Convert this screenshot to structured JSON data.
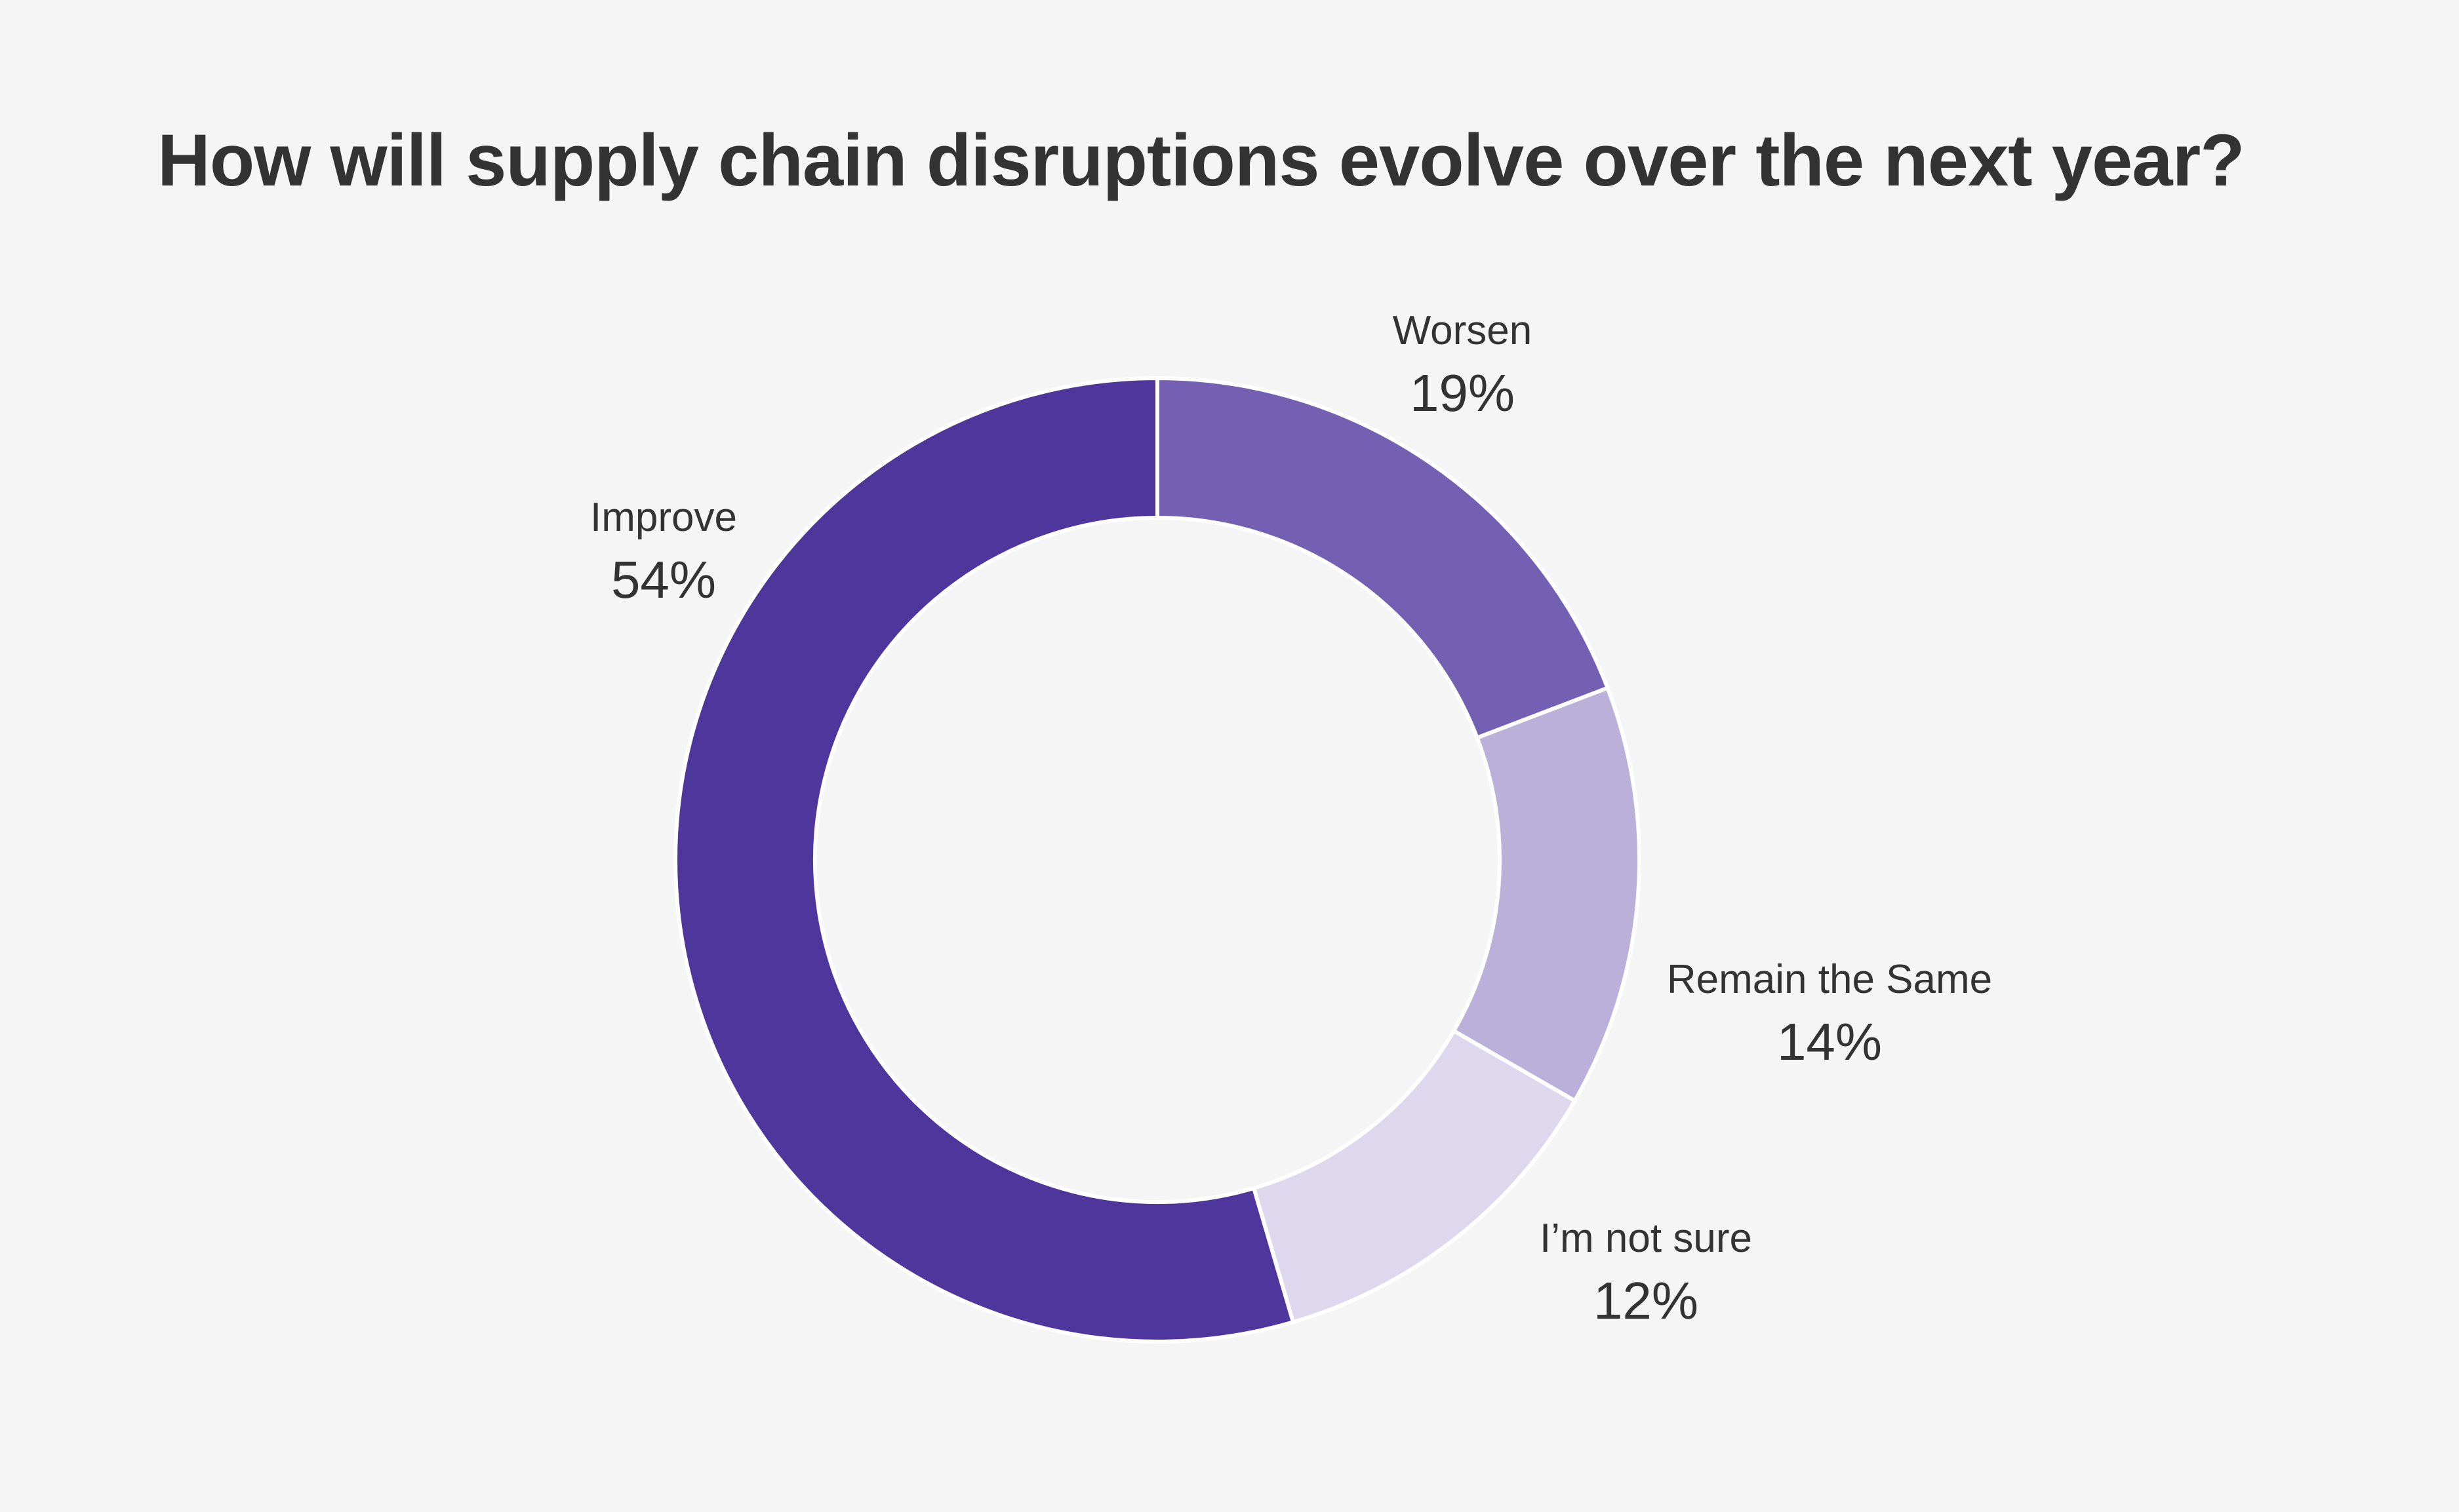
{
  "title": "How will supply chain disruptions evolve over the next year?",
  "chart_data": {
    "type": "pie",
    "donut": true,
    "title": "How will supply chain disruptions evolve over the next year?",
    "slices": [
      {
        "label": "Worsen",
        "value": 19,
        "display": "19%",
        "color": "#7460b3"
      },
      {
        "label": "Remain the Same",
        "value": 14,
        "display": "14%",
        "color": "#bab0d9"
      },
      {
        "label": "I’m not sure",
        "value": 12,
        "display": "12%",
        "color": "#ddd8ee"
      },
      {
        "label": "Improve",
        "value": 54,
        "display": "54%",
        "color": "#4f369c"
      }
    ],
    "start": "12 o'clock",
    "direction": "clockwise"
  }
}
